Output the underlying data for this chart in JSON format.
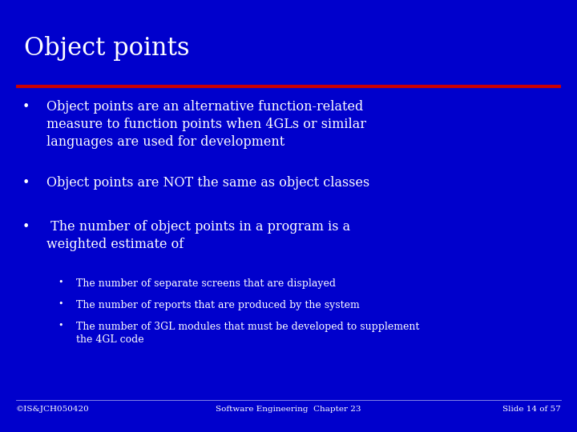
{
  "title": "Object points",
  "bg_color": "#0000cc",
  "title_color": "#ffffff",
  "text_color": "#ffffff",
  "line_color": "#cc0000",
  "bullet_items": [
    "Object points are an alternative function-related\nmeasure to function points when 4GLs or similar\nlanguages are used for development",
    "Object points are NOT the same as object classes",
    " The number of object points in a program is a\nweighted estimate of"
  ],
  "sub_bullets": [
    "The number of separate screens that are displayed",
    "The number of reports that are produced by the system",
    "The number of 3GL modules that must be developed to supplement\nthe 4GL code"
  ],
  "footer_left": "©IS&JCH050420",
  "footer_center": "Software Engineering  Chapter 23",
  "footer_right": "Slide 14 of 57",
  "title_fontsize": 22,
  "bullet_fontsize": 11.5,
  "sub_bullet_fontsize": 9,
  "footer_fontsize": 7.5
}
